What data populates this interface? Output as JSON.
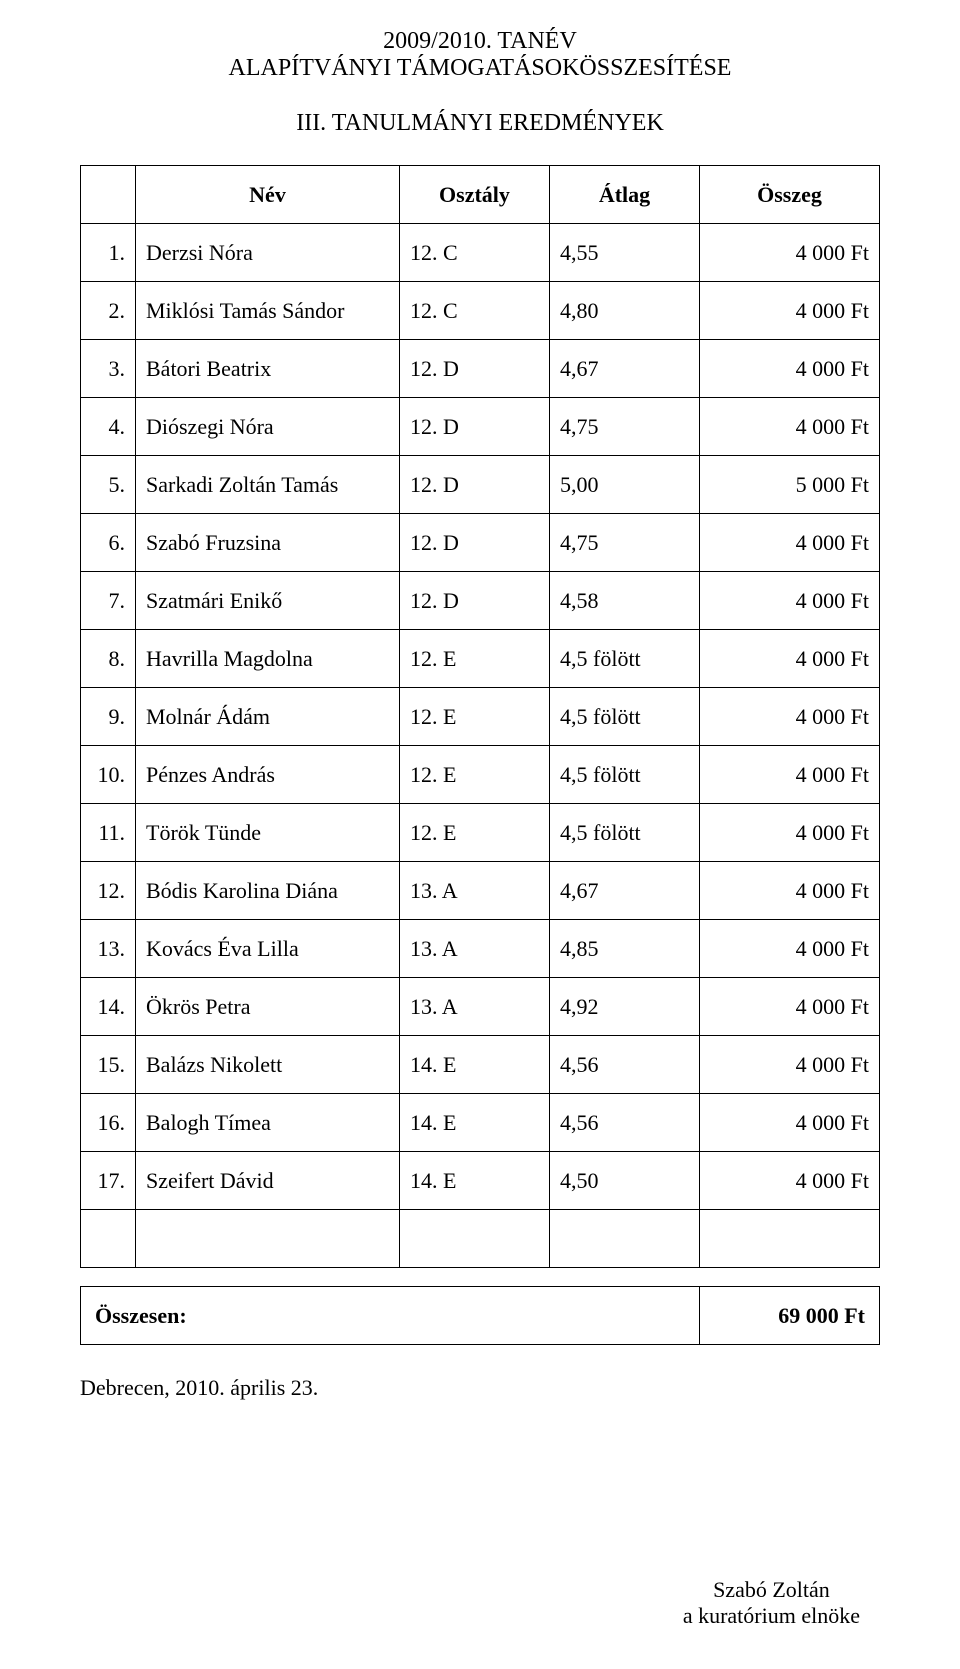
{
  "title": {
    "line1": "2009/2010. TANÉV",
    "line2": "ALAPÍTVÁNYI TÁMOGATÁSOKÖSSZESÍTÉSE"
  },
  "subtitle": "III. TANULMÁNYI EREDMÉNYEK",
  "table": {
    "columns": {
      "num": "",
      "name": "Név",
      "class": "Osztály",
      "avg": "Átlag",
      "sum": "Összeg"
    },
    "rows": [
      {
        "num": "1.",
        "name": "Derzsi Nóra",
        "class": "12. C",
        "avg": "4,55",
        "sum": "4 000 Ft"
      },
      {
        "num": "2.",
        "name": "Miklósi Tamás Sándor",
        "class": "12. C",
        "avg": "4,80",
        "sum": "4 000 Ft"
      },
      {
        "num": "3.",
        "name": "Bátori Beatrix",
        "class": "12. D",
        "avg": "4,67",
        "sum": "4 000 Ft"
      },
      {
        "num": "4.",
        "name": "Diószegi Nóra",
        "class": "12. D",
        "avg": "4,75",
        "sum": "4 000 Ft"
      },
      {
        "num": "5.",
        "name": "Sarkadi Zoltán Tamás",
        "class": "12. D",
        "avg": "5,00",
        "sum": "5 000 Ft"
      },
      {
        "num": "6.",
        "name": "Szabó Fruzsina",
        "class": "12. D",
        "avg": "4,75",
        "sum": "4 000 Ft"
      },
      {
        "num": "7.",
        "name": "Szatmári Enikő",
        "class": "12. D",
        "avg": "4,58",
        "sum": "4 000 Ft"
      },
      {
        "num": "8.",
        "name": "Havrilla Magdolna",
        "class": "12. E",
        "avg": "4,5 fölött",
        "sum": "4 000 Ft"
      },
      {
        "num": "9.",
        "name": "Molnár Ádám",
        "class": "12. E",
        "avg": "4,5 fölött",
        "sum": "4 000 Ft"
      },
      {
        "num": "10.",
        "name": "Pénzes András",
        "class": "12. E",
        "avg": "4,5 fölött",
        "sum": "4 000 Ft"
      },
      {
        "num": "11.",
        "name": "Török Tünde",
        "class": "12. E",
        "avg": "4,5 fölött",
        "sum": "4 000 Ft"
      },
      {
        "num": "12.",
        "name": "Bódis Karolina Diána",
        "class": "13. A",
        "avg": "4,67",
        "sum": "4 000 Ft"
      },
      {
        "num": "13.",
        "name": "Kovács Éva Lilla",
        "class": "13. A",
        "avg": "4,85",
        "sum": "4 000 Ft"
      },
      {
        "num": "14.",
        "name": "Ökrös Petra",
        "class": "13. A",
        "avg": "4,92",
        "sum": "4 000 Ft"
      },
      {
        "num": "15.",
        "name": "Balázs Nikolett",
        "class": "14. E",
        "avg": "4,56",
        "sum": "4 000 Ft"
      },
      {
        "num": "16.",
        "name": "Balogh Tímea",
        "class": "14. E",
        "avg": "4,56",
        "sum": "4 000 Ft"
      },
      {
        "num": "17.",
        "name": "Szeifert Dávid",
        "class": "14. E",
        "avg": "4,50",
        "sum": "4 000 Ft"
      }
    ]
  },
  "total": {
    "label": "Összesen:",
    "value": "69 000 Ft"
  },
  "date": "Debrecen, 2010. április 23.",
  "signature": {
    "name": "Szabó Zoltán",
    "role": "a kuratórium elnöke"
  },
  "style": {
    "border_color": "#000000",
    "background_color": "#ffffff",
    "font_family": "Times New Roman",
    "heading_fontsize_pt": 18,
    "body_fontsize_pt": 16
  }
}
